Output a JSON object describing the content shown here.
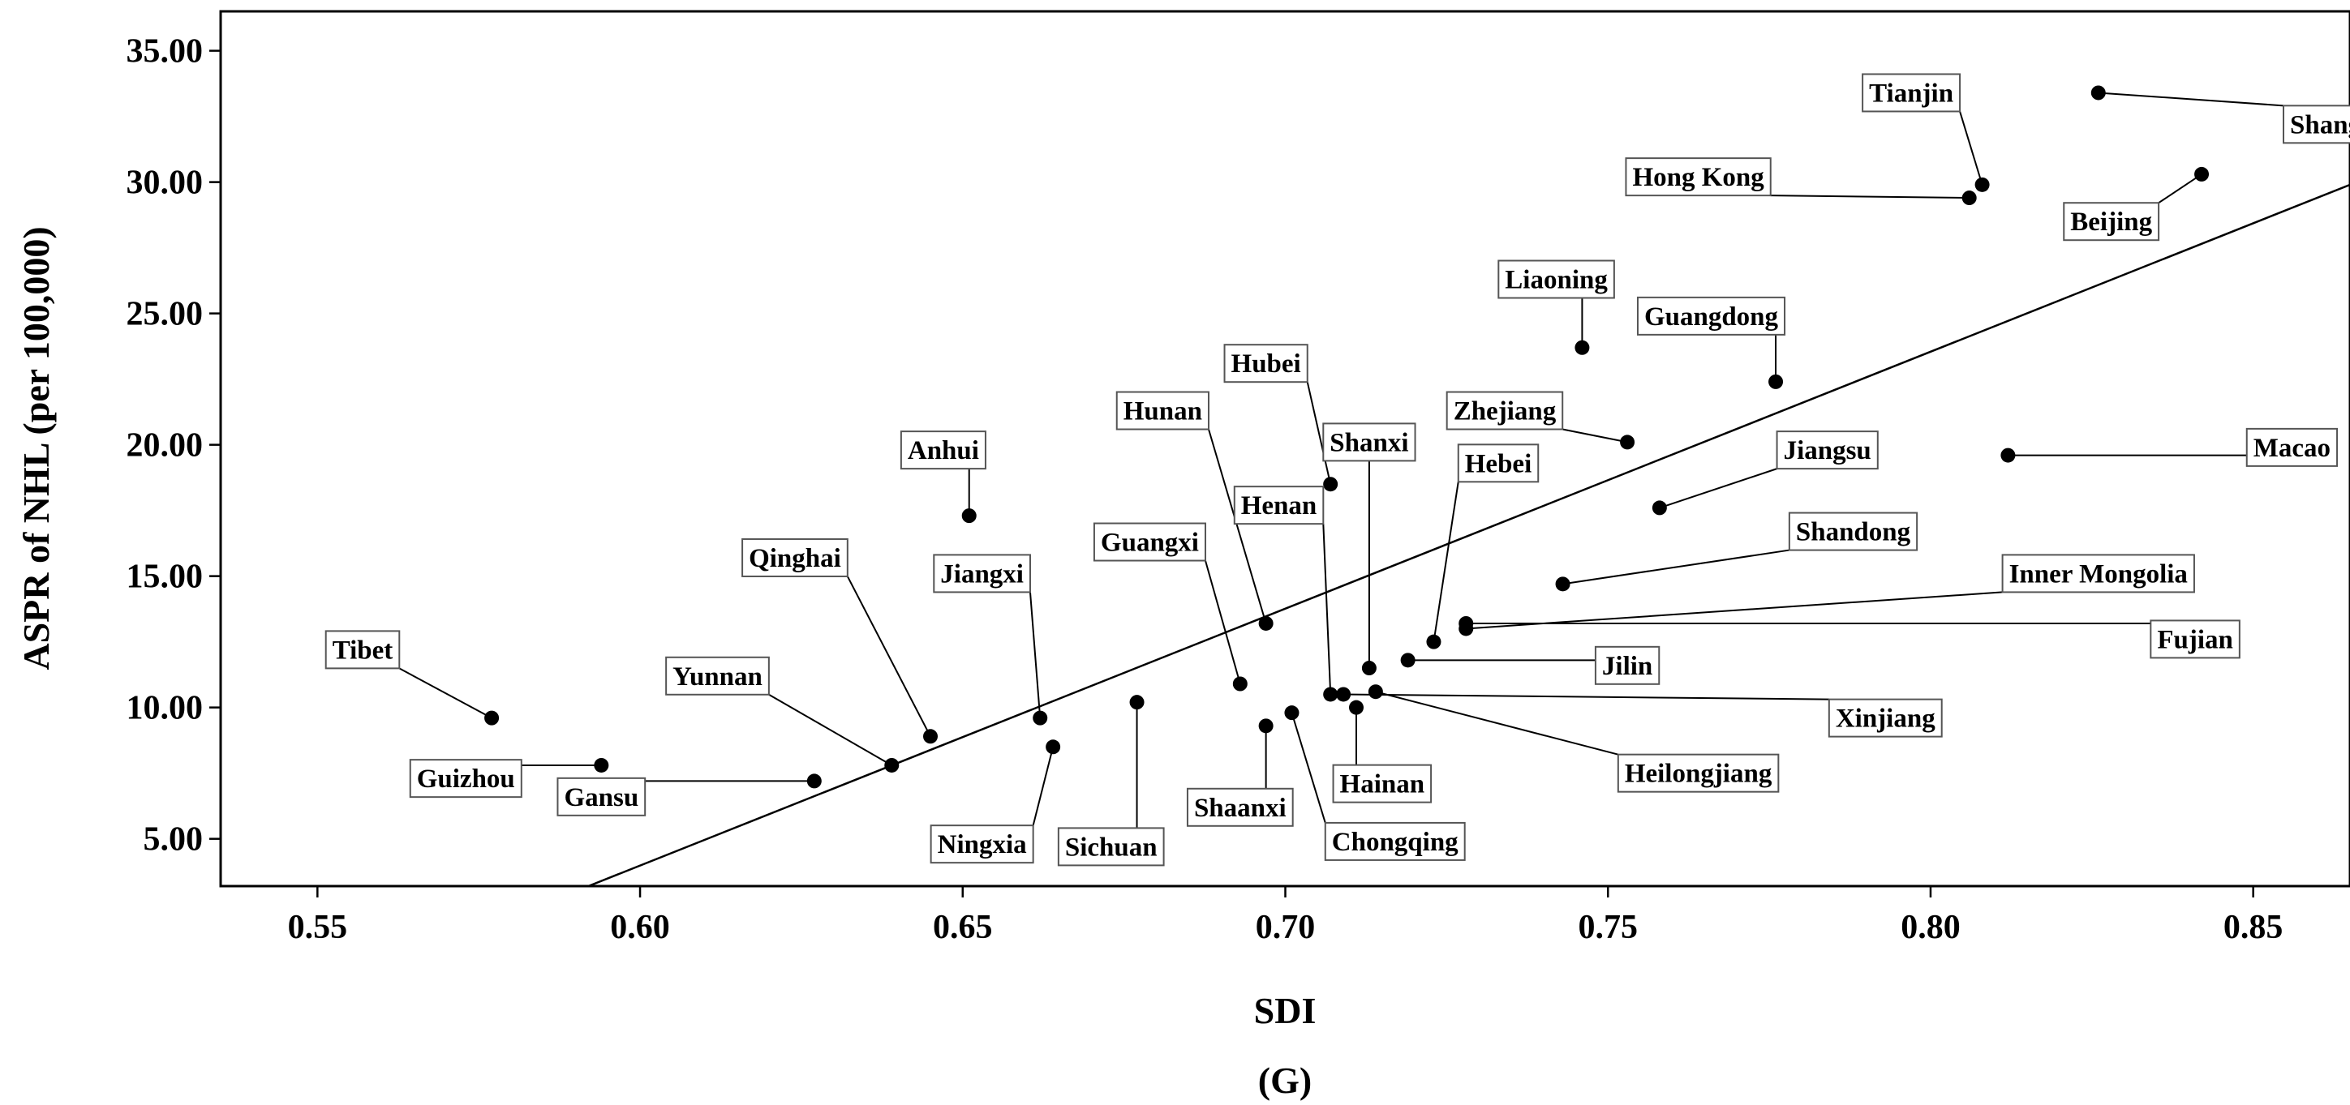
{
  "chart_data": {
    "type": "scatter",
    "title": "",
    "panel_label": "(G)",
    "xlabel": "SDI",
    "ylabel": "ASPR of NHL (per 100,000)",
    "xlim": [
      0.535,
      0.865
    ],
    "ylim": [
      3.2,
      36.5
    ],
    "x_ticks": [
      {
        "value": 0.55,
        "label": "0.55"
      },
      {
        "value": 0.6,
        "label": "0.60"
      },
      {
        "value": 0.65,
        "label": "0.65"
      },
      {
        "value": 0.7,
        "label": "0.70"
      },
      {
        "value": 0.75,
        "label": "0.75"
      },
      {
        "value": 0.8,
        "label": "0.80"
      },
      {
        "value": 0.85,
        "label": "0.85"
      }
    ],
    "y_ticks": [
      {
        "value": 5,
        "label": "5.00"
      },
      {
        "value": 10,
        "label": "10.00"
      },
      {
        "value": 15,
        "label": "15.00"
      },
      {
        "value": 20,
        "label": "20.00"
      },
      {
        "value": 25,
        "label": "25.00"
      },
      {
        "value": 30,
        "label": "30.00"
      },
      {
        "value": 35,
        "label": "35.00"
      }
    ],
    "grid": false,
    "point_color": "#000000",
    "fit_line": {
      "x": [
        0.592,
        0.865
      ],
      "y": [
        3.2,
        29.9
      ]
    },
    "points": [
      {
        "name": "Tibet",
        "x": 0.577,
        "y": 9.6,
        "lx": 0.557,
        "ly": 12.2
      },
      {
        "name": "Guizhou",
        "x": 0.594,
        "y": 7.8,
        "lx": 0.573,
        "ly": 7.3
      },
      {
        "name": "Gansu",
        "x": 0.627,
        "y": 7.2,
        "lx": 0.594,
        "ly": 6.6
      },
      {
        "name": "Yunnan",
        "x": 0.639,
        "y": 7.8,
        "lx": 0.612,
        "ly": 11.2
      },
      {
        "name": "Qinghai",
        "x": 0.645,
        "y": 8.9,
        "lx": 0.624,
        "ly": 15.7
      },
      {
        "name": "Anhui",
        "x": 0.651,
        "y": 17.3,
        "lx": 0.647,
        "ly": 19.8
      },
      {
        "name": "Jiangxi",
        "x": 0.662,
        "y": 9.6,
        "lx": 0.653,
        "ly": 15.1
      },
      {
        "name": "Ningxia",
        "x": 0.664,
        "y": 8.5,
        "lx": 0.653,
        "ly": 4.8
      },
      {
        "name": "Sichuan",
        "x": 0.677,
        "y": 10.2,
        "lx": 0.673,
        "ly": 4.7
      },
      {
        "name": "Guangxi",
        "x": 0.693,
        "y": 10.9,
        "lx": 0.679,
        "ly": 16.3
      },
      {
        "name": "Hunan",
        "x": 0.697,
        "y": 13.2,
        "lx": 0.681,
        "ly": 21.3
      },
      {
        "name": "Shaanxi",
        "x": 0.697,
        "y": 9.3,
        "lx": 0.693,
        "ly": 6.2
      },
      {
        "name": "Hubei",
        "x": 0.707,
        "y": 18.5,
        "lx": 0.697,
        "ly": 23.1
      },
      {
        "name": "Henan",
        "x": 0.707,
        "y": 10.5,
        "lx": 0.699,
        "ly": 17.7
      },
      {
        "name": "Chongqing",
        "x": 0.701,
        "y": 9.8,
        "lx": 0.717,
        "ly": 4.9
      },
      {
        "name": "Hainan",
        "x": 0.711,
        "y": 10.0,
        "lx": 0.715,
        "ly": 7.1
      },
      {
        "name": "Shanxi",
        "x": 0.713,
        "y": 11.5,
        "lx": 0.713,
        "ly": 20.1
      },
      {
        "name": "Xinjiang",
        "x": 0.709,
        "y": 10.5,
        "lx": 0.793,
        "ly": 9.6
      },
      {
        "name": "Heilongjiang",
        "x": 0.714,
        "y": 10.6,
        "lx": 0.764,
        "ly": 7.5
      },
      {
        "name": "Jilin",
        "x": 0.719,
        "y": 11.8,
        "lx": 0.753,
        "ly": 11.6
      },
      {
        "name": "Hebei",
        "x": 0.723,
        "y": 12.5,
        "lx": 0.733,
        "ly": 19.3
      },
      {
        "name": "Fujian",
        "x": 0.728,
        "y": 13.2,
        "lx": 0.841,
        "ly": 12.6
      },
      {
        "name": "Zhejiang",
        "x": 0.753,
        "y": 20.1,
        "lx": 0.734,
        "ly": 21.3
      },
      {
        "name": "Liaoning",
        "x": 0.746,
        "y": 23.7,
        "lx": 0.742,
        "ly": 26.3
      },
      {
        "name": "Shandong",
        "x": 0.743,
        "y": 14.7,
        "lx": 0.788,
        "ly": 16.7
      },
      {
        "name": "Inner Mongolia",
        "x": 0.728,
        "y": 13.0,
        "lx": 0.826,
        "ly": 15.1
      },
      {
        "name": "Jiangsu",
        "x": 0.758,
        "y": 17.6,
        "lx": 0.784,
        "ly": 19.8
      },
      {
        "name": "Guangdong",
        "x": 0.776,
        "y": 22.4,
        "lx": 0.766,
        "ly": 24.9
      },
      {
        "name": "Macao",
        "x": 0.812,
        "y": 19.6,
        "lx": 0.856,
        "ly": 19.9
      },
      {
        "name": "Hong Kong",
        "x": 0.806,
        "y": 29.4,
        "lx": 0.764,
        "ly": 30.2
      },
      {
        "name": "Tianjin",
        "x": 0.808,
        "y": 29.9,
        "lx": 0.797,
        "ly": 33.4
      },
      {
        "name": "Beijing",
        "x": 0.842,
        "y": 30.3,
        "lx": 0.828,
        "ly": 28.5
      },
      {
        "name": "Shanghai",
        "x": 0.826,
        "y": 33.4,
        "lx": 0.864,
        "ly": 32.2
      }
    ]
  }
}
